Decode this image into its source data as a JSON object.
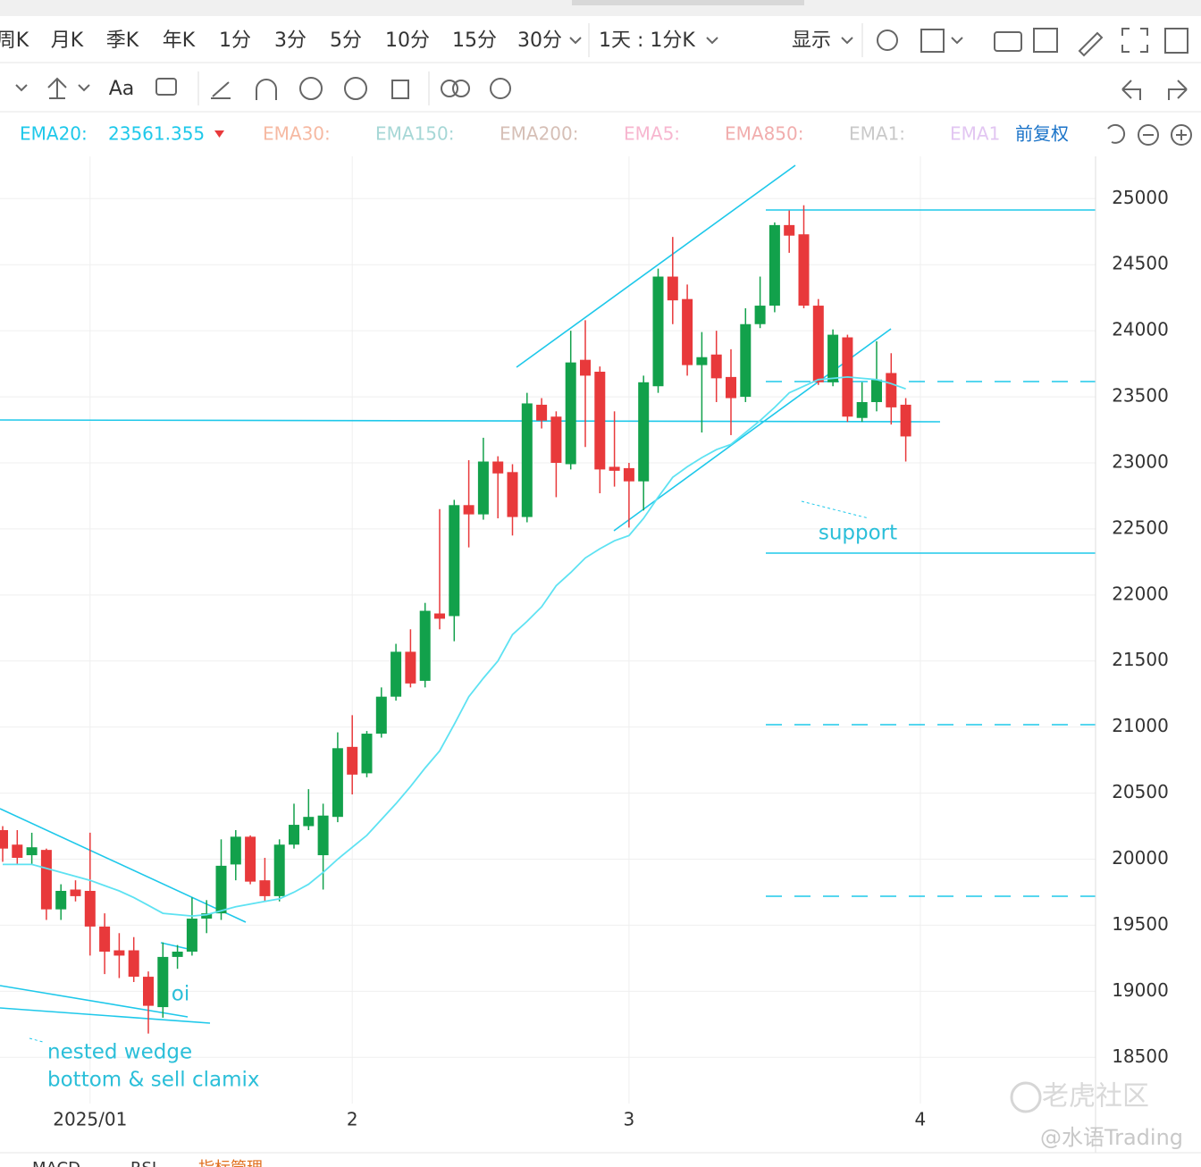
{
  "toolbar": {
    "periods": [
      "周K",
      "月K",
      "季K",
      "年K",
      "1分",
      "3分",
      "5分",
      "10分",
      "15分",
      "30分"
    ],
    "interval": "1天 : 1分K",
    "display": "显示",
    "text_tool": "Aa"
  },
  "indicators": {
    "ema20_label": "EMA20:",
    "ema20_value": "23561.355",
    "others": [
      "EMA30:",
      "EMA150:",
      "EMA200:",
      "EMA5:",
      "EMA850:",
      "EMA1:",
      "EMA1"
    ],
    "adjust": "前复权"
  },
  "chart_data": {
    "type": "candlestick",
    "categories": [
      null,
      null,
      null,
      null,
      null,
      null,
      "2025/01",
      null,
      null,
      null,
      null,
      null,
      null,
      null,
      null,
      null,
      null,
      null,
      null,
      null,
      null,
      null,
      null,
      null,
      "2",
      null,
      null,
      null,
      null,
      null,
      null,
      null,
      null,
      null,
      null,
      null,
      null,
      null,
      null,
      null,
      null,
      null,
      null,
      "3",
      null,
      null,
      null,
      null,
      null,
      null,
      null,
      null,
      null,
      null,
      null,
      null,
      null,
      null,
      null,
      null,
      null,
      null,
      null,
      "4"
    ],
    "open": [
      20220,
      20110,
      20030,
      20070,
      19620,
      19770,
      19760,
      19490,
      19310,
      19310,
      19110,
      18880,
      19260,
      19300,
      19550,
      19590,
      19960,
      20170,
      19840,
      19720,
      20110,
      20250,
      20030,
      20320,
      20850,
      20650,
      20950,
      21230,
      21570,
      21350,
      21860,
      21840,
      22680,
      22610,
      23010,
      22930,
      22590,
      23440,
      23350,
      22990,
      23780,
      23690,
      22970,
      22960,
      22860,
      23580,
      24410,
      24240,
      23740,
      23820,
      23650,
      23500,
      24050,
      24190,
      24800,
      24730,
      24190,
      23610,
      23950,
      23340,
      23460,
      23680,
      23440,
      null
    ],
    "high": [
      20250,
      20220,
      20200,
      20080,
      19810,
      19840,
      20200,
      19590,
      19440,
      19410,
      19150,
      19370,
      19350,
      19710,
      19690,
      20150,
      20220,
      20180,
      20010,
      20150,
      20420,
      20530,
      20420,
      20960,
      21090,
      20970,
      21300,
      21630,
      21740,
      21940,
      22650,
      22720,
      23020,
      23190,
      23050,
      22990,
      23530,
      23490,
      23390,
      24000,
      24080,
      23730,
      23390,
      23000,
      23660,
      24470,
      24710,
      24350,
      23990,
      24000,
      23860,
      24170,
      24410,
      24820,
      24910,
      24950,
      24240,
      24010,
      23970,
      23610,
      23920,
      23830,
      23490,
      null
    ],
    "low": [
      19980,
      19960,
      19960,
      19540,
      19540,
      19680,
      19270,
      19130,
      19100,
      19070,
      18680,
      18800,
      19170,
      19270,
      19440,
      19540,
      19840,
      19810,
      19680,
      19680,
      20080,
      20220,
      19770,
      20280,
      20490,
      20620,
      20920,
      21200,
      21300,
      21300,
      21740,
      21650,
      22360,
      22570,
      22580,
      22450,
      22550,
      23260,
      22740,
      22950,
      23120,
      22770,
      22820,
      22510,
      22640,
      23530,
      24050,
      23660,
      23230,
      23460,
      23210,
      23460,
      24020,
      24140,
      24590,
      24170,
      23590,
      23580,
      23310,
      23310,
      23390,
      23290,
      23010,
      null
    ],
    "close": [
      20080,
      20010,
      20090,
      19620,
      19760,
      19720,
      19490,
      19300,
      19270,
      19110,
      18890,
      19260,
      19300,
      19550,
      19590,
      19950,
      20170,
      19830,
      19720,
      20110,
      20260,
      20320,
      20330,
      20840,
      20640,
      20950,
      21230,
      21570,
      21330,
      21880,
      21820,
      22680,
      22610,
      23010,
      22920,
      22590,
      23450,
      23320,
      23000,
      23760,
      23660,
      22950,
      22940,
      22860,
      23610,
      24410,
      24230,
      23740,
      23800,
      23640,
      23490,
      24050,
      24190,
      24800,
      24720,
      24190,
      23610,
      23970,
      23350,
      23460,
      23630,
      23420,
      23200,
      null
    ],
    "up_color": "#12a14b",
    "down_color": "#e8393b",
    "ema": {
      "color": "#5ee2f2",
      "values": [
        19960,
        19960,
        19960,
        19930,
        19900,
        19870,
        19840,
        19800,
        19760,
        19710,
        19650,
        19590,
        19580,
        19570,
        19580,
        19610,
        19640,
        19660,
        19680,
        19700,
        19750,
        19810,
        19900,
        20000,
        20090,
        20180,
        20300,
        20420,
        20550,
        20690,
        20820,
        21020,
        21230,
        21370,
        21500,
        21700,
        21800,
        21910,
        22070,
        22170,
        22280,
        22350,
        22410,
        22450,
        22580,
        22740,
        22890,
        22970,
        23040,
        23100,
        23140,
        23230,
        23320,
        23420,
        23530,
        23580,
        23630,
        23640,
        23650,
        23640,
        23630,
        23600,
        23560,
        null
      ]
    },
    "ylim": [
      18150,
      25320
    ],
    "yticks": [
      18500,
      19000,
      19500,
      20000,
      20500,
      21000,
      21500,
      22000,
      22500,
      23000,
      23500,
      24000,
      24500,
      25000
    ],
    "grid": true,
    "annotations": [
      "support",
      "oi",
      "nested wedge",
      "bottom & sell clamix"
    ]
  },
  "watermark": [
    "老虎社区",
    "@水语Trading"
  ],
  "bottom_tabs": [
    "MACD",
    "RSI",
    "指标管理"
  ]
}
